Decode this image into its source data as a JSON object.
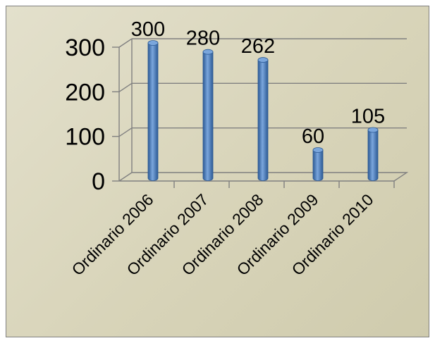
{
  "chart_data": {
    "type": "bar",
    "categories": [
      "Ordinario 2006",
      "Ordinario 2007",
      "Ordinario 2008",
      "Ordinario 2009",
      "Ordinario 2010"
    ],
    "values": [
      300,
      280,
      262,
      60,
      105
    ],
    "data_labels": [
      "300",
      "280",
      "262",
      "60",
      "105"
    ],
    "y_ticks": [
      "0",
      "100",
      "200",
      "300"
    ],
    "title": "",
    "xlabel": "",
    "ylabel": "",
    "ylim": [
      0,
      300
    ],
    "grid": true,
    "legend": "none",
    "colors": {
      "bar": "#4a7ebf",
      "bar_dark": "#2c5a95",
      "bar_light": "#7aa6dc",
      "gridline": "#808080",
      "background": "#d9d5bc"
    }
  }
}
